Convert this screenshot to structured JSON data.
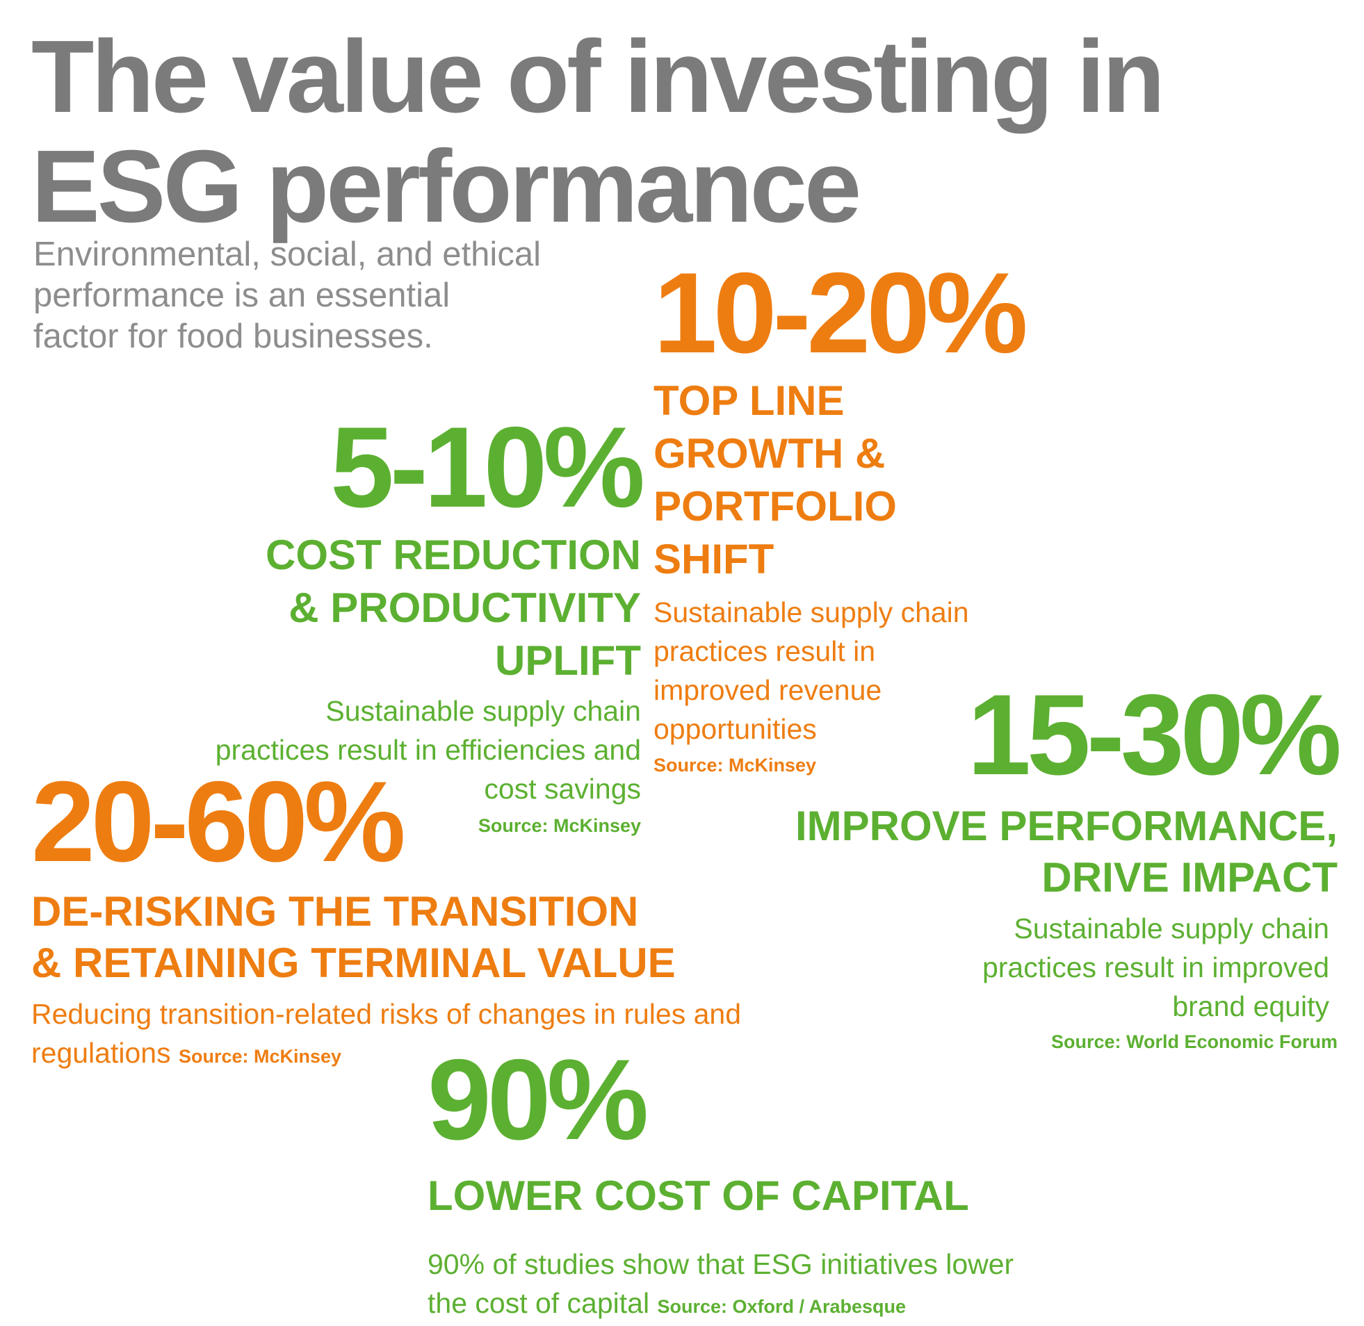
{
  "title_line1": "The value of investing in",
  "title_line2": "ESG performance",
  "intro_line1": "Environmental, social, and ethical",
  "intro_line2": "performance is an essential",
  "intro_line3": "factor for food businesses.",
  "colors": {
    "title": "#7b7b7b",
    "intro": "#8d8d8d",
    "green": "#5cb031",
    "orange": "#ee7d11"
  },
  "stats": {
    "topline": {
      "value": "10-20%",
      "head": [
        "TOP LINE",
        "GROWTH &",
        "PORTFOLIO",
        "SHIFT"
      ],
      "desc": [
        "Sustainable supply chain",
        "practices result in",
        "improved revenue",
        "opportunities"
      ],
      "source": "Source: McKinsey"
    },
    "cost": {
      "value": "5-10%",
      "head": [
        "COST REDUCTION",
        "& PRODUCTIVITY",
        "UPLIFT"
      ],
      "desc": [
        "Sustainable supply chain",
        "practices result in efficiencies and",
        "cost savings"
      ],
      "source": "Source: McKinsey"
    },
    "performance": {
      "value": "15-30%",
      "head": [
        "IMPROVE PERFORMANCE,",
        "DRIVE IMPACT"
      ],
      "desc": [
        "Sustainable supply chain",
        "practices result in improved",
        "brand equity"
      ],
      "source": "Source: World Economic Forum"
    },
    "derisking": {
      "value": "20-60%",
      "head": [
        "DE-RISKING THE TRANSITION",
        "& RETAINING TERMINAL VALUE"
      ],
      "desc": [
        "Reducing transition-related risks of changes in rules and",
        "regulations"
      ],
      "source": "Source: McKinsey"
    },
    "capital": {
      "value": "90%",
      "head": [
        "LOWER COST OF CAPITAL"
      ],
      "desc": [
        "90% of studies show that ESG initiatives lower",
        "the cost of capital"
      ],
      "source": "Source: Oxford / Arabesque"
    }
  }
}
